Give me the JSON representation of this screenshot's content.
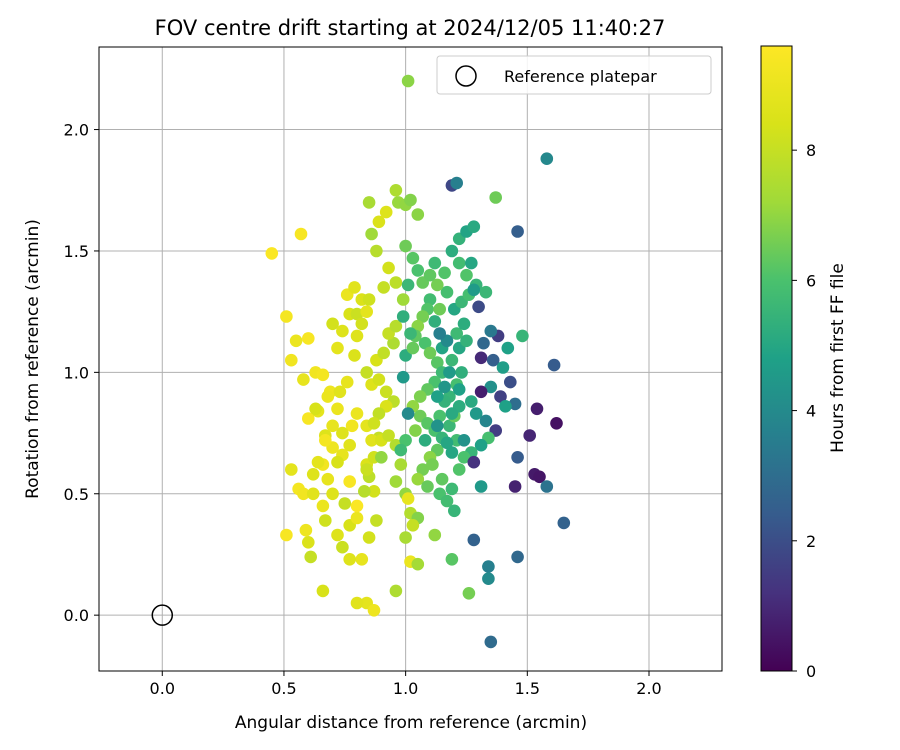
{
  "chart_data": {
    "type": "scatter",
    "title": "FOV centre drift starting at 2024/12/05 11:40:27",
    "xlabel": "Angular distance from reference (arcmin)",
    "ylabel": "Rotation from reference (arcmin)",
    "xlim": [
      -0.26,
      2.3
    ],
    "ylim": [
      -0.23,
      2.34
    ],
    "xticks": [
      "0.0",
      "0.5",
      "1.0",
      "1.5",
      "2.0"
    ],
    "yticks": [
      "0.0",
      "0.5",
      "1.0",
      "1.5",
      "2.0"
    ],
    "grid": true,
    "legend": {
      "position": "top-right",
      "entries": [
        {
          "label": "Reference platepar",
          "marker": "open-circle"
        }
      ]
    },
    "reference_point": {
      "x": 0.0,
      "y": 0.0
    },
    "colorbar": {
      "label": "Hours from first FF file",
      "colormap": "viridis",
      "range": [
        0,
        9.6
      ],
      "ticks": [
        "0",
        "2",
        "4",
        "6",
        "8"
      ]
    },
    "points": [
      [
        0.45,
        1.49,
        9.5
      ],
      [
        0.57,
        1.57,
        9.4
      ],
      [
        0.51,
        1.23,
        9.3
      ],
      [
        0.53,
        1.05,
        9.2
      ],
      [
        0.55,
        1.13,
        9.0
      ],
      [
        0.58,
        0.97,
        8.9
      ],
      [
        0.6,
        1.14,
        9.4
      ],
      [
        0.63,
        1.0,
        9.2
      ],
      [
        0.66,
        0.99,
        9.3
      ],
      [
        0.69,
        0.92,
        9.1
      ],
      [
        0.72,
        0.85,
        9.0
      ],
      [
        0.6,
        0.81,
        9.4
      ],
      [
        0.64,
        0.84,
        8.8
      ],
      [
        0.67,
        0.74,
        8.6
      ],
      [
        0.7,
        0.69,
        9.1
      ],
      [
        0.74,
        0.66,
        8.9
      ],
      [
        0.77,
        0.7,
        8.7
      ],
      [
        0.66,
        0.62,
        9.2
      ],
      [
        0.62,
        0.58,
        8.6
      ],
      [
        0.56,
        0.52,
        9.3
      ],
      [
        0.58,
        0.5,
        9.2
      ],
      [
        0.53,
        0.6,
        8.8
      ],
      [
        0.51,
        0.33,
        9.4
      ],
      [
        0.6,
        0.3,
        8.5
      ],
      [
        0.67,
        0.39,
        8.2
      ],
      [
        0.72,
        0.33,
        8.6
      ],
      [
        0.77,
        0.37,
        8.4
      ],
      [
        0.8,
        0.4,
        9.0
      ],
      [
        0.82,
        0.23,
        8.9
      ],
      [
        0.85,
        0.32,
        8.3
      ],
      [
        0.84,
        0.05,
        8.8
      ],
      [
        0.87,
        0.02,
        9.1
      ],
      [
        0.8,
        0.05,
        8.7
      ],
      [
        0.61,
        0.24,
        8.0
      ],
      [
        0.66,
        0.1,
        8.4
      ],
      [
        0.75,
        0.46,
        8.0
      ],
      [
        0.8,
        0.45,
        9.5
      ],
      [
        0.77,
        0.55,
        9.4
      ],
      [
        0.84,
        0.62,
        8.5
      ],
      [
        0.87,
        0.65,
        8.2
      ],
      [
        0.9,
        0.65,
        7.0
      ],
      [
        0.89,
        0.73,
        8.0
      ],
      [
        0.84,
        0.78,
        8.8
      ],
      [
        0.8,
        0.83,
        9.0
      ],
      [
        0.78,
        0.78,
        9.2
      ],
      [
        0.74,
        0.75,
        8.6
      ],
      [
        0.7,
        0.78,
        8.9
      ],
      [
        0.67,
        0.72,
        9.3
      ],
      [
        0.72,
        0.63,
        8.4
      ],
      [
        0.64,
        0.63,
        8.8
      ],
      [
        0.68,
        0.56,
        8.9
      ],
      [
        0.7,
        0.5,
        8.6
      ],
      [
        0.62,
        0.5,
        8.7
      ],
      [
        0.66,
        0.45,
        9.0
      ],
      [
        0.59,
        0.35,
        9.1
      ],
      [
        0.63,
        0.85,
        8.4
      ],
      [
        0.68,
        0.9,
        9.0
      ],
      [
        0.73,
        0.92,
        8.7
      ],
      [
        0.76,
        0.96,
        8.9
      ],
      [
        0.79,
        1.07,
        8.5
      ],
      [
        0.72,
        1.1,
        8.8
      ],
      [
        0.7,
        1.2,
        8.3
      ],
      [
        0.74,
        1.17,
        8.6
      ],
      [
        0.77,
        1.24,
        8.4
      ],
      [
        0.8,
        1.24,
        8.1
      ],
      [
        0.76,
        1.32,
        9.0
      ],
      [
        0.79,
        1.35,
        8.7
      ],
      [
        0.82,
        1.3,
        8.5
      ],
      [
        0.85,
        1.3,
        8.2
      ],
      [
        0.84,
        1.25,
        8.8
      ],
      [
        0.82,
        1.2,
        8.3
      ],
      [
        0.8,
        1.15,
        8.6
      ],
      [
        0.84,
        1.0,
        8.0
      ],
      [
        0.86,
        0.95,
        8.6
      ],
      [
        0.89,
        0.97,
        8.3
      ],
      [
        0.92,
        0.92,
        8.1
      ],
      [
        0.95,
        0.88,
        7.8
      ],
      [
        0.92,
        0.86,
        8.5
      ],
      [
        0.89,
        0.83,
        7.9
      ],
      [
        0.87,
        0.79,
        8.2
      ],
      [
        0.86,
        0.72,
        8.7
      ],
      [
        0.9,
        0.72,
        8.4
      ],
      [
        0.93,
        0.74,
        8.0
      ],
      [
        0.96,
        0.7,
        7.6
      ],
      [
        0.98,
        0.62,
        7.4
      ],
      [
        0.96,
        0.55,
        7.2
      ],
      [
        1.0,
        0.5,
        7.0
      ],
      [
        1.01,
        0.48,
        8.9
      ],
      [
        1.02,
        0.42,
        7.6
      ],
      [
        1.05,
        0.4,
        6.8
      ],
      [
        1.03,
        0.37,
        8.0
      ],
      [
        1.0,
        0.32,
        7.4
      ],
      [
        1.02,
        0.22,
        9.0
      ],
      [
        1.05,
        0.21,
        7.3
      ],
      [
        0.96,
        0.1,
        7.5
      ],
      [
        0.88,
        0.39,
        8.0
      ],
      [
        0.87,
        0.51,
        8.3
      ],
      [
        0.83,
        0.51,
        7.7
      ],
      [
        0.85,
        0.57,
        7.8
      ],
      [
        0.84,
        0.6,
        8.1
      ],
      [
        0.77,
        0.23,
        8.6
      ],
      [
        0.74,
        0.28,
        8.1
      ],
      [
        0.88,
        1.05,
        8.4
      ],
      [
        0.91,
        1.08,
        7.9
      ],
      [
        0.95,
        1.12,
        7.5
      ],
      [
        0.93,
        1.16,
        8.0
      ],
      [
        0.96,
        1.19,
        7.7
      ],
      [
        0.99,
        1.3,
        7.2
      ],
      [
        0.96,
        1.37,
        7.8
      ],
      [
        0.93,
        1.43,
        8.3
      ],
      [
        0.91,
        1.35,
        8.0
      ],
      [
        0.88,
        1.5,
        7.7
      ],
      [
        0.86,
        1.57,
        7.2
      ],
      [
        0.89,
        1.62,
        8.5
      ],
      [
        0.92,
        1.66,
        8.6
      ],
      [
        0.85,
        1.7,
        7.4
      ],
      [
        0.97,
        1.7,
        7.1
      ],
      [
        1.0,
        1.69,
        7.0
      ],
      [
        1.02,
        1.71,
        6.8
      ],
      [
        0.96,
        1.75,
        7.5
      ],
      [
        1.05,
        1.65,
        6.9
      ],
      [
        1.01,
        2.2,
        6.9
      ],
      [
        1.0,
        1.52,
        6.5
      ],
      [
        1.03,
        1.47,
        6.2
      ],
      [
        1.05,
        1.42,
        6.0
      ],
      [
        1.07,
        1.37,
        6.4
      ],
      [
        1.1,
        1.3,
        5.8
      ],
      [
        1.09,
        1.26,
        6.1
      ],
      [
        1.07,
        1.23,
        6.6
      ],
      [
        1.05,
        1.19,
        6.9
      ],
      [
        1.04,
        1.15,
        6.3
      ],
      [
        1.08,
        1.12,
        6.0
      ],
      [
        1.1,
        1.08,
        6.5
      ],
      [
        1.13,
        1.04,
        6.2
      ],
      [
        1.15,
        1.0,
        5.7
      ],
      [
        1.12,
        0.96,
        6.0
      ],
      [
        1.09,
        0.93,
        6.3
      ],
      [
        1.06,
        0.9,
        6.7
      ],
      [
        1.03,
        0.86,
        7.0
      ],
      [
        1.06,
        0.82,
        6.5
      ],
      [
        1.09,
        0.79,
        6.2
      ],
      [
        1.12,
        0.76,
        6.0
      ],
      [
        1.15,
        0.73,
        5.5
      ],
      [
        1.13,
        0.68,
        6.3
      ],
      [
        1.1,
        0.65,
        6.9
      ],
      [
        1.07,
        0.6,
        6.6
      ],
      [
        1.05,
        0.56,
        7.1
      ],
      [
        1.09,
        0.53,
        6.4
      ],
      [
        1.14,
        0.5,
        6.0
      ],
      [
        1.17,
        0.47,
        5.8
      ],
      [
        1.2,
        0.43,
        5.5
      ],
      [
        1.22,
        0.6,
        6.1
      ],
      [
        1.19,
        0.67,
        5.0
      ],
      [
        1.21,
        0.72,
        5.8
      ],
      [
        1.18,
        0.78,
        5.6
      ],
      [
        1.2,
        0.82,
        6.4
      ],
      [
        1.22,
        0.86,
        5.2
      ],
      [
        1.18,
        0.9,
        5.5
      ],
      [
        1.21,
        0.95,
        5.9
      ],
      [
        1.23,
        1.0,
        5.3
      ],
      [
        1.19,
        1.05,
        5.6
      ],
      [
        1.22,
        1.1,
        5.0
      ],
      [
        1.25,
        1.13,
        5.4
      ],
      [
        1.21,
        1.16,
        5.7
      ],
      [
        1.24,
        1.2,
        5.2
      ],
      [
        1.2,
        1.26,
        5.0
      ],
      [
        1.23,
        1.29,
        5.6
      ],
      [
        1.26,
        1.32,
        5.9
      ],
      [
        1.29,
        1.36,
        5.5
      ],
      [
        1.25,
        1.4,
        6.1
      ],
      [
        1.22,
        1.45,
        5.8
      ],
      [
        1.19,
        1.5,
        5.2
      ],
      [
        1.22,
        1.55,
        5.4
      ],
      [
        1.25,
        1.58,
        4.9
      ],
      [
        1.28,
        1.6,
        5.1
      ],
      [
        1.19,
        1.77,
        1.8
      ],
      [
        1.21,
        1.78,
        3.6
      ],
      [
        1.37,
        1.72,
        6.5
      ],
      [
        1.58,
        1.88,
        3.9
      ],
      [
        1.46,
        1.58,
        2.5
      ],
      [
        1.61,
        1.03,
        2.4
      ],
      [
        1.48,
        1.15,
        5.5
      ],
      [
        1.42,
        1.1,
        4.8
      ],
      [
        1.38,
        1.15,
        1.5
      ],
      [
        1.35,
        1.17,
        3.4
      ],
      [
        1.32,
        1.12,
        2.8
      ],
      [
        1.3,
        1.27,
        1.9
      ],
      [
        1.33,
        1.33,
        5.6
      ],
      [
        1.28,
        1.34,
        4.6
      ],
      [
        1.27,
        1.45,
        5.0
      ],
      [
        1.31,
        1.06,
        1.0
      ],
      [
        1.36,
        1.05,
        2.5
      ],
      [
        1.4,
        1.02,
        4.7
      ],
      [
        1.43,
        0.96,
        2.0
      ],
      [
        1.39,
        0.9,
        1.6
      ],
      [
        1.35,
        0.94,
        4.2
      ],
      [
        1.31,
        0.92,
        0.7
      ],
      [
        1.27,
        0.88,
        5.1
      ],
      [
        1.29,
        0.83,
        4.5
      ],
      [
        1.33,
        0.8,
        3.8
      ],
      [
        1.37,
        0.76,
        1.5
      ],
      [
        1.34,
        0.73,
        5.9
      ],
      [
        1.31,
        0.7,
        4.8
      ],
      [
        1.27,
        0.67,
        5.5
      ],
      [
        1.24,
        0.65,
        6.0
      ],
      [
        1.28,
        0.63,
        1.2
      ],
      [
        1.31,
        0.53,
        4.5
      ],
      [
        1.45,
        0.53,
        0.8
      ],
      [
        1.53,
        0.58,
        0.6
      ],
      [
        1.55,
        0.57,
        0.5
      ],
      [
        1.58,
        0.53,
        3.2
      ],
      [
        1.62,
        0.79,
        0.4
      ],
      [
        1.54,
        0.85,
        0.7
      ],
      [
        1.51,
        0.74,
        0.9
      ],
      [
        1.45,
        0.87,
        3.0
      ],
      [
        1.41,
        0.86,
        4.8
      ],
      [
        1.46,
        0.65,
        2.4
      ],
      [
        1.65,
        0.38,
        2.6
      ],
      [
        1.46,
        0.24,
        2.8
      ],
      [
        1.34,
        0.2,
        3.6
      ],
      [
        1.34,
        0.15,
        4.0
      ],
      [
        1.28,
        0.31,
        2.6
      ],
      [
        1.26,
        0.09,
        6.6
      ],
      [
        1.35,
        -0.11,
        2.9
      ],
      [
        1.19,
        0.23,
        6.2
      ],
      [
        1.12,
        0.33,
        7.0
      ],
      [
        1.15,
        0.56,
        6.3
      ],
      [
        1.19,
        0.52,
        5.7
      ],
      [
        1.24,
        0.72,
        4.3
      ],
      [
        1.17,
        0.71,
        5.0
      ],
      [
        1.11,
        0.62,
        6.6
      ],
      [
        1.14,
        0.82,
        6.0
      ],
      [
        1.16,
        0.88,
        5.4
      ],
      [
        1.13,
        0.9,
        4.8
      ],
      [
        1.16,
        0.94,
        4.4
      ],
      [
        1.18,
        1.0,
        4.6
      ],
      [
        1.15,
        1.1,
        4.9
      ],
      [
        1.17,
        1.13,
        4.0
      ],
      [
        1.14,
        1.16,
        3.6
      ],
      [
        1.12,
        1.21,
        5.3
      ],
      [
        1.14,
        1.26,
        6.5
      ],
      [
        1.17,
        1.33,
        5.9
      ],
      [
        1.13,
        1.36,
        6.6
      ],
      [
        1.16,
        1.41,
        6.1
      ],
      [
        1.12,
        1.45,
        5.7
      ],
      [
        1.1,
        1.4,
        6.3
      ],
      [
        1.01,
        1.36,
        5.6
      ],
      [
        0.99,
        1.23,
        5.3
      ],
      [
        1.02,
        1.16,
        5.6
      ],
      [
        1.0,
        1.07,
        5.2
      ],
      [
        1.03,
        1.1,
        6.4
      ],
      [
        0.99,
        0.98,
        4.5
      ],
      [
        1.01,
        0.83,
        4.0
      ],
      [
        1.0,
        0.72,
        6.0
      ],
      [
        1.04,
        0.76,
        6.8
      ],
      [
        0.98,
        0.68,
        5.7
      ],
      [
        1.08,
        0.72,
        5.2
      ],
      [
        1.13,
        0.78,
        4.3
      ],
      [
        1.19,
        0.83,
        5.1
      ],
      [
        1.22,
        0.93,
        4.8
      ]
    ]
  }
}
